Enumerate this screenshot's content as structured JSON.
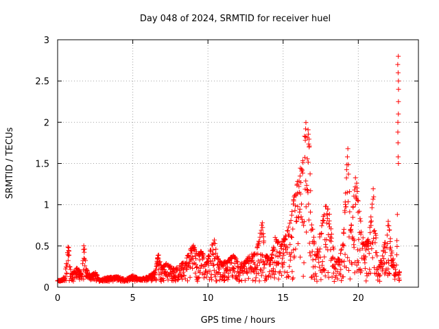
{
  "chart_data": {
    "type": "scatter",
    "title": "Day 048 of 2024, SRMTID for receiver huel",
    "xlabel": "GPS time / hours",
    "ylabel": "SRMTID / TECUs",
    "xlim": [
      0,
      24
    ],
    "ylim": [
      0,
      3
    ],
    "xticks": [
      0,
      5,
      10,
      15,
      20
    ],
    "xtick_labels": [
      "0",
      "5",
      "10",
      "15",
      "20"
    ],
    "yticks": [
      0,
      0.5,
      1,
      1.5,
      2,
      2.5,
      3
    ],
    "ytick_labels": [
      "0",
      "0.5",
      "1",
      "1.5",
      "2",
      "2.5",
      "3"
    ],
    "grid": true,
    "marker": "+",
    "series": [
      {
        "name": "SRMTID",
        "color": "#ff0000",
        "envelope": [
          [
            0.0,
            0.08
          ],
          [
            0.3,
            0.09
          ],
          [
            0.5,
            0.16
          ],
          [
            0.7,
            0.55
          ],
          [
            0.85,
            0.22
          ],
          [
            1.0,
            0.17
          ],
          [
            1.3,
            0.25
          ],
          [
            1.6,
            0.15
          ],
          [
            1.75,
            0.59
          ],
          [
            1.9,
            0.22
          ],
          [
            2.2,
            0.14
          ],
          [
            2.5,
            0.2
          ],
          [
            2.8,
            0.08
          ],
          [
            3.2,
            0.12
          ],
          [
            4.0,
            0.13
          ],
          [
            4.5,
            0.1
          ],
          [
            5.0,
            0.14
          ],
          [
            5.5,
            0.1
          ],
          [
            6.0,
            0.13
          ],
          [
            6.5,
            0.2
          ],
          [
            6.7,
            0.44
          ],
          [
            6.9,
            0.25
          ],
          [
            7.3,
            0.3
          ],
          [
            7.8,
            0.22
          ],
          [
            8.3,
            0.3
          ],
          [
            8.8,
            0.45
          ],
          [
            9.0,
            0.55
          ],
          [
            9.3,
            0.4
          ],
          [
            9.6,
            0.45
          ],
          [
            9.9,
            0.3
          ],
          [
            10.2,
            0.5
          ],
          [
            10.4,
            0.62
          ],
          [
            10.6,
            0.38
          ],
          [
            10.9,
            0.3
          ],
          [
            11.3,
            0.32
          ],
          [
            11.7,
            0.4
          ],
          [
            12.0,
            0.3
          ],
          [
            12.4,
            0.3
          ],
          [
            12.8,
            0.4
          ],
          [
            13.2,
            0.42
          ],
          [
            13.6,
            0.8
          ],
          [
            13.8,
            0.4
          ],
          [
            14.2,
            0.35
          ],
          [
            14.5,
            0.65
          ],
          [
            14.8,
            0.5
          ],
          [
            15.2,
            0.65
          ],
          [
            15.5,
            0.9
          ],
          [
            15.8,
            1.2
          ],
          [
            16.1,
            1.45
          ],
          [
            16.3,
            1.55
          ],
          [
            16.5,
            2.06
          ],
          [
            16.7,
            1.9
          ],
          [
            16.9,
            0.8
          ],
          [
            17.2,
            0.4
          ],
          [
            17.5,
            0.75
          ],
          [
            17.8,
            1.02
          ],
          [
            18.1,
            0.9
          ],
          [
            18.4,
            0.4
          ],
          [
            18.7,
            0.35
          ],
          [
            19.0,
            0.6
          ],
          [
            19.3,
            1.78
          ],
          [
            19.5,
            0.7
          ],
          [
            19.8,
            1.4
          ],
          [
            20.1,
            0.9
          ],
          [
            20.4,
            0.5
          ],
          [
            20.7,
            0.6
          ],
          [
            21.0,
            1.22
          ],
          [
            21.3,
            0.2
          ],
          [
            21.6,
            0.4
          ],
          [
            21.8,
            0.6
          ],
          [
            22.0,
            0.85
          ],
          [
            22.2,
            0.45
          ],
          [
            22.5,
            0.18
          ],
          [
            22.6,
            0.9
          ],
          [
            22.7,
            2.8
          ]
        ],
        "floor": 0.07,
        "late_spike": {
          "x": 22.65,
          "values": [
            1.5,
            1.58,
            1.75,
            1.88,
            2.0,
            2.1,
            2.25,
            2.4,
            2.5,
            2.6,
            2.7,
            2.8
          ]
        }
      }
    ]
  }
}
